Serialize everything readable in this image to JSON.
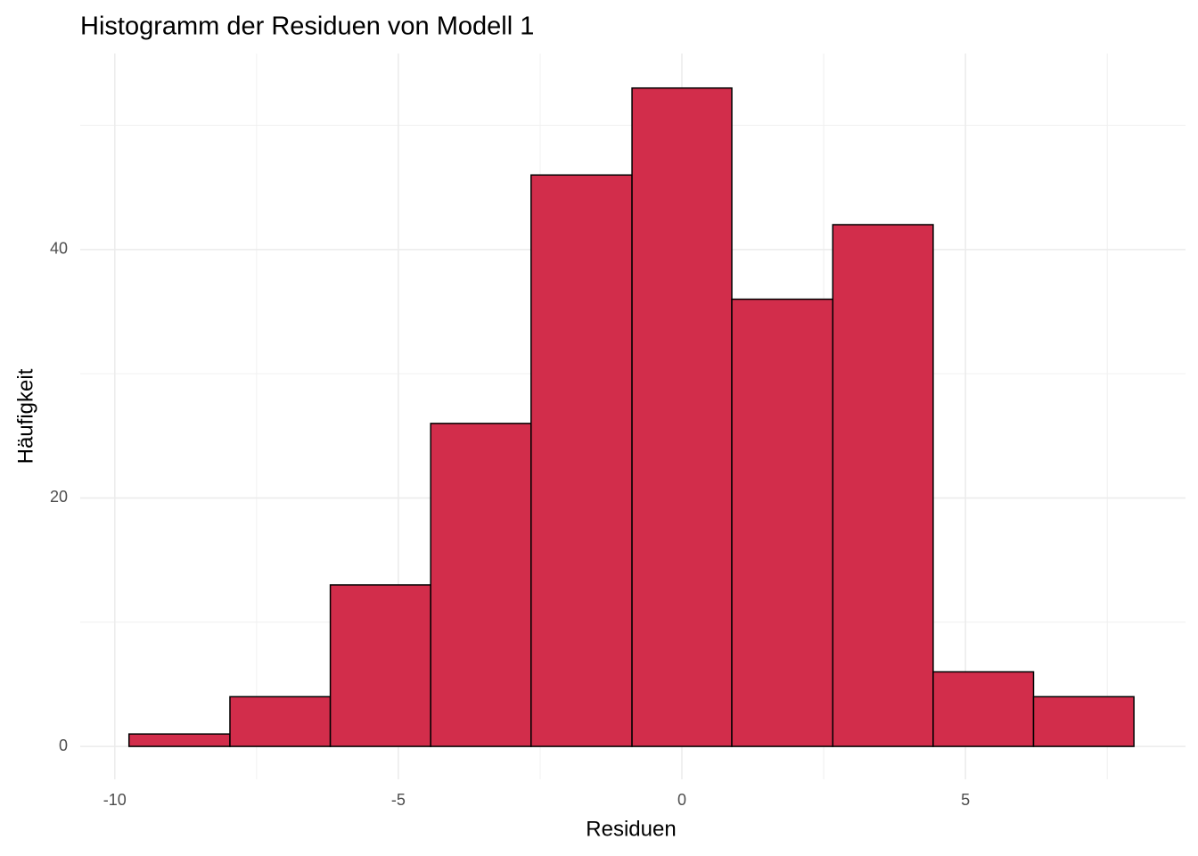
{
  "chart_data": {
    "type": "histogram",
    "title": "Histogramm der Residuen von Modell 1",
    "x_label": "Residuen",
    "y_label": "Häufigkeit",
    "bins": [
      -9.75,
      -7.97,
      -6.2,
      -4.43,
      -2.66,
      -0.88,
      0.88,
      2.66,
      4.43,
      6.2,
      7.97
    ],
    "values": [
      1,
      4,
      13,
      26,
      46,
      53,
      36,
      42,
      6,
      4
    ],
    "color": "#d22d4b",
    "edge_color": "#000000",
    "xlim": [
      -10.61,
      8.88
    ],
    "xticks": [
      -10,
      -5,
      0,
      5
    ],
    "x_minor_ticks": [
      -7.5,
      -2.5,
      2.5,
      7.5
    ],
    "ylim": [
      -2.65,
      55.78
    ],
    "yticks": [
      0,
      20,
      40
    ],
    "y_minor_ticks": [
      10,
      30,
      50
    ],
    "grid": true
  }
}
